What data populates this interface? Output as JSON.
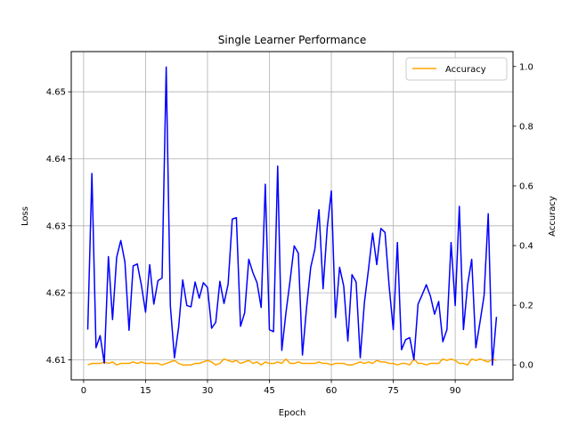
{
  "chart_data": {
    "type": "line",
    "title": "Single Learner Performance",
    "xlabel": "Epoch",
    "ylabel_left": "Loss",
    "ylabel_right": "Accuracy",
    "xlim": [
      -3,
      104
    ],
    "ylim_left": [
      4.607,
      4.656
    ],
    "ylim_right": [
      -0.05,
      1.05
    ],
    "x_ticks": [
      0,
      15,
      30,
      45,
      60,
      75,
      90
    ],
    "y_ticks_left": [
      4.61,
      4.62,
      4.63,
      4.64,
      4.65
    ],
    "y_ticks_right": [
      0.0,
      0.2,
      0.4,
      0.6,
      0.8,
      1.0
    ],
    "grid": true,
    "legend": {
      "placement": "top-right",
      "entries": [
        "Accuracy"
      ]
    },
    "x": [
      1,
      2,
      3,
      4,
      5,
      6,
      7,
      8,
      9,
      10,
      11,
      12,
      13,
      14,
      15,
      16,
      17,
      18,
      19,
      20,
      21,
      22,
      23,
      24,
      25,
      26,
      27,
      28,
      29,
      30,
      31,
      32,
      33,
      34,
      35,
      36,
      37,
      38,
      39,
      40,
      41,
      42,
      43,
      44,
      45,
      46,
      47,
      48,
      49,
      50,
      51,
      52,
      53,
      54,
      55,
      56,
      57,
      58,
      59,
      60,
      61,
      62,
      63,
      64,
      65,
      66,
      67,
      68,
      69,
      70,
      71,
      72,
      73,
      74,
      75,
      76,
      77,
      78,
      79,
      80,
      81,
      82,
      83,
      84,
      85,
      86,
      87,
      88,
      89,
      90,
      91,
      92,
      93,
      94,
      95,
      96,
      97,
      98,
      99,
      100
    ],
    "series": [
      {
        "name": "Loss",
        "axis": "left",
        "color": "#0000ff",
        "values": [
          4.6145,
          4.6378,
          4.6118,
          4.6136,
          4.6095,
          4.6254,
          4.616,
          4.6253,
          4.6278,
          4.6246,
          4.6144,
          4.624,
          4.6243,
          4.6211,
          4.6171,
          4.6242,
          4.6183,
          4.6218,
          4.6222,
          4.6537,
          4.6181,
          4.6103,
          4.6148,
          4.6219,
          4.6181,
          4.6179,
          4.6216,
          4.6192,
          4.6215,
          4.6208,
          4.6147,
          4.6156,
          4.6217,
          4.6184,
          4.6213,
          4.631,
          4.6312,
          4.615,
          4.617,
          4.625,
          4.623,
          4.6215,
          4.6178,
          4.6362,
          4.6145,
          4.6142,
          4.6389,
          4.6114,
          4.617,
          4.6218,
          4.627,
          4.6259,
          4.6107,
          4.6178,
          4.6238,
          4.6265,
          4.6324,
          4.6206,
          4.6297,
          4.6352,
          4.6163,
          4.6238,
          4.621,
          4.6128,
          4.6227,
          4.6216,
          4.6103,
          4.6185,
          4.6235,
          4.6289,
          4.6242,
          4.6296,
          4.629,
          4.621,
          4.6145,
          4.6275,
          4.6115,
          4.613,
          4.6133,
          4.61,
          4.6183,
          4.6197,
          4.6212,
          4.6195,
          4.6168,
          4.6187,
          4.6127,
          4.6145,
          4.6275,
          4.6181,
          4.6329,
          4.6145,
          4.6212,
          4.625,
          4.6118,
          4.6156,
          4.6196,
          4.6318,
          4.6092,
          4.6164
        ]
      },
      {
        "name": "Accuracy",
        "axis": "right",
        "color": "#ffa500",
        "values": [
          0.0,
          0.005,
          0.005,
          0.005,
          0.01,
          0.005,
          0.01,
          0.0,
          0.005,
          0.005,
          0.005,
          0.01,
          0.005,
          0.01,
          0.005,
          0.005,
          0.005,
          0.005,
          0.0,
          0.005,
          0.01,
          0.015,
          0.005,
          0.0,
          0.0,
          0.0,
          0.005,
          0.005,
          0.01,
          0.015,
          0.01,
          0.0,
          0.005,
          0.02,
          0.015,
          0.01,
          0.015,
          0.005,
          0.01,
          0.015,
          0.005,
          0.01,
          0.0,
          0.01,
          0.005,
          0.005,
          0.01,
          0.005,
          0.02,
          0.005,
          0.005,
          0.01,
          0.005,
          0.005,
          0.005,
          0.005,
          0.01,
          0.005,
          0.005,
          0.0,
          0.005,
          0.005,
          0.005,
          0.0,
          0.0,
          0.005,
          0.01,
          0.005,
          0.01,
          0.005,
          0.015,
          0.01,
          0.01,
          0.005,
          0.005,
          0.0,
          0.005,
          0.005,
          0.0,
          0.02,
          0.005,
          0.005,
          0.0,
          0.005,
          0.005,
          0.005,
          0.02,
          0.015,
          0.02,
          0.015,
          0.005,
          0.005,
          0.0,
          0.02,
          0.015,
          0.02,
          0.015,
          0.01,
          0.02,
          0.015
        ]
      }
    ]
  }
}
